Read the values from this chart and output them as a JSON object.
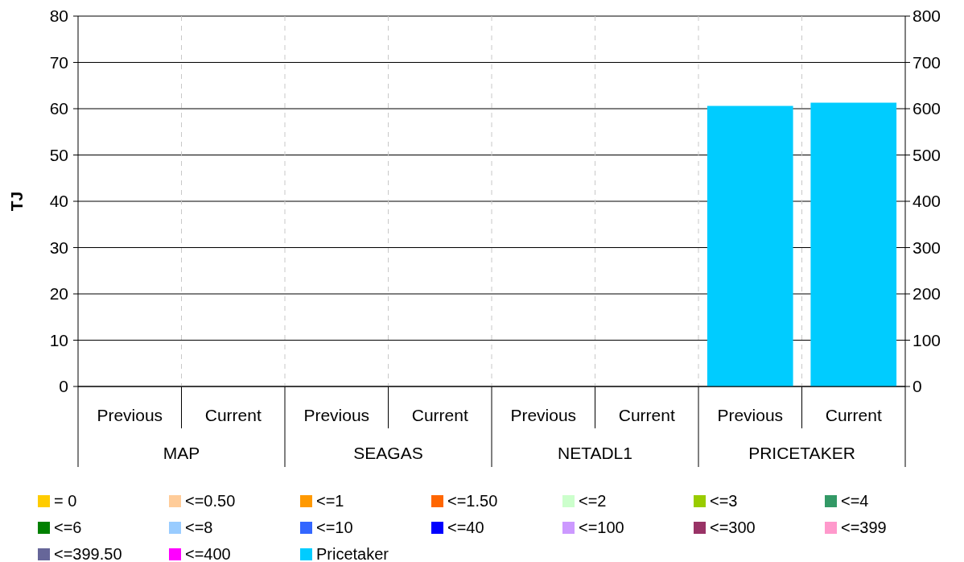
{
  "chart_data": {
    "type": "bar",
    "ylabel": "TJ",
    "categories": [
      "Previous",
      "Current",
      "Previous",
      "Current",
      "Previous",
      "Current",
      "Previous",
      "Current"
    ],
    "annotations": [
      "MAP",
      "SEAGAS",
      "NETADL1",
      "PRICETAKER"
    ],
    "series": [
      {
        "name": "= 0",
        "color": "#ffcc00",
        "values": [
          0,
          0,
          0,
          0,
          0,
          0,
          0,
          0
        ]
      },
      {
        "name": "<=0.50",
        "color": "#ffcc99",
        "values": [
          0,
          0,
          0,
          0,
          0,
          0,
          0,
          0
        ]
      },
      {
        "name": "<=1",
        "color": "#ff9900",
        "values": [
          0,
          0,
          0,
          0,
          0,
          0,
          0,
          0
        ]
      },
      {
        "name": "<=1.50",
        "color": "#ff6600",
        "values": [
          0,
          0,
          0,
          0,
          0,
          0,
          0,
          0
        ]
      },
      {
        "name": "<=2",
        "color": "#ccffcc",
        "values": [
          0,
          0,
          0,
          0,
          0,
          0,
          0,
          0
        ]
      },
      {
        "name": "<=3",
        "color": "#99cc00",
        "values": [
          0,
          0,
          0,
          0,
          0,
          0,
          0,
          0
        ]
      },
      {
        "name": "<=4",
        "color": "#339966",
        "values": [
          0,
          0,
          0,
          0,
          0,
          0,
          0,
          0
        ]
      },
      {
        "name": "<=6",
        "color": "#008000",
        "values": [
          0,
          0,
          0,
          0,
          0,
          0,
          0,
          0
        ]
      },
      {
        "name": "<=8",
        "color": "#99ccff",
        "values": [
          0,
          0,
          0,
          0,
          0,
          0,
          0,
          0
        ]
      },
      {
        "name": "<=10",
        "color": "#3366ff",
        "values": [
          0,
          0,
          0,
          0,
          0,
          0,
          0,
          0
        ]
      },
      {
        "name": "<=40",
        "color": "#0000ff",
        "values": [
          0,
          0,
          0,
          0,
          0,
          0,
          0,
          0
        ]
      },
      {
        "name": "<=100",
        "color": "#cc99ff",
        "values": [
          0,
          0,
          0,
          0,
          0,
          0,
          0,
          0
        ]
      },
      {
        "name": "<=300",
        "color": "#993366",
        "values": [
          0,
          0,
          0,
          0,
          0,
          0,
          0,
          0
        ]
      },
      {
        "name": "<=399",
        "color": "#ff99cc",
        "values": [
          0,
          0,
          0,
          0,
          0,
          0,
          0,
          0
        ]
      },
      {
        "name": "<=399.50",
        "color": "#666699",
        "values": [
          0,
          0,
          0,
          0,
          0,
          0,
          0,
          0
        ]
      },
      {
        "name": "<=400",
        "color": "#ff00ff",
        "values": [
          0,
          0,
          0,
          0,
          0,
          0,
          0,
          0
        ]
      },
      {
        "name": "Pricetaker",
        "color": "#00ccff",
        "values": [
          0,
          0,
          0,
          0,
          0,
          0,
          60.6,
          61.3
        ]
      }
    ],
    "ylim": [
      0,
      80
    ],
    "yticks": [
      0,
      10,
      20,
      30,
      40,
      50,
      60,
      70,
      80
    ],
    "y2lim": [
      0,
      800
    ],
    "y2ticks": [
      0,
      100,
      200,
      300,
      400,
      500,
      600,
      700,
      800
    ],
    "grid": "y",
    "legend": "bottom"
  }
}
